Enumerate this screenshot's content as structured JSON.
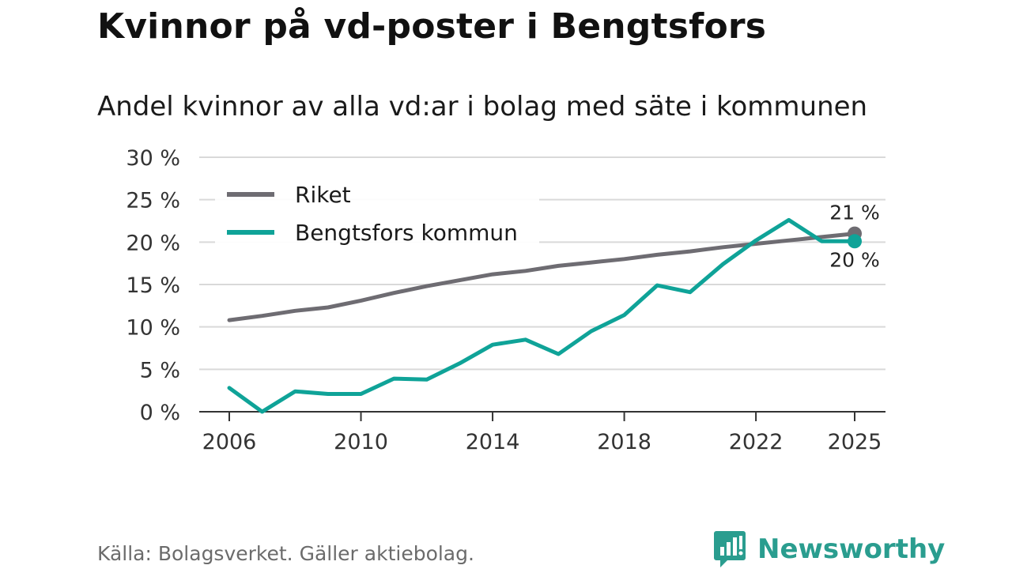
{
  "title": "Kvinnor på vd-poster i Bengtsfors",
  "subtitle": "Andel kvinnor av alla vd:ar i bolag med säte i kommunen",
  "source": "Källa: Bolagsverket. Gäller aktiebolag.",
  "brand": "Newsworthy",
  "colors": {
    "riket": "#6e6c72",
    "kommun": "#0fa398",
    "grid": "#d9d9d9",
    "axis": "#333333",
    "brand": "#2a9d8f"
  },
  "chart_data": {
    "type": "line",
    "title": "Kvinnor på vd-poster i Bengtsfors",
    "subtitle": "Andel kvinnor av alla vd:ar i bolag med säte i kommunen",
    "xlabel": "",
    "ylabel": "",
    "xlim": [
      2006,
      2025
    ],
    "ylim": [
      0,
      30
    ],
    "grid": true,
    "legend_position": "top-left",
    "x": [
      2006,
      2007,
      2008,
      2009,
      2010,
      2011,
      2012,
      2013,
      2014,
      2015,
      2016,
      2017,
      2018,
      2019,
      2020,
      2021,
      2022,
      2023,
      2024,
      2025
    ],
    "x_ticks": [
      2006,
      2010,
      2014,
      2018,
      2022,
      2025
    ],
    "x_tick_labels": [
      "2006",
      "2010",
      "2014",
      "2018",
      "2022",
      "2025"
    ],
    "y_ticks": [
      0,
      5,
      10,
      15,
      20,
      25,
      30
    ],
    "y_tick_labels": [
      "0 %",
      "5 %",
      "10 %",
      "15 %",
      "20 %",
      "25 %",
      "30 %"
    ],
    "series": [
      {
        "name": "Riket",
        "color": "#6e6c72",
        "values": [
          10.8,
          11.3,
          11.9,
          12.3,
          13.1,
          14.0,
          14.8,
          15.5,
          16.2,
          16.6,
          17.2,
          17.6,
          18.0,
          18.5,
          18.9,
          19.4,
          19.8,
          20.2,
          20.6,
          21.0
        ],
        "end_label": "21 %"
      },
      {
        "name": "Bengtsfors kommun",
        "color": "#0fa398",
        "values": [
          2.8,
          0.0,
          2.4,
          2.1,
          2.1,
          3.9,
          3.8,
          5.7,
          7.9,
          8.5,
          6.8,
          9.5,
          11.4,
          14.9,
          14.1,
          17.4,
          20.2,
          22.6,
          20.1,
          20.1
        ],
        "end_label": "20 %"
      }
    ]
  }
}
